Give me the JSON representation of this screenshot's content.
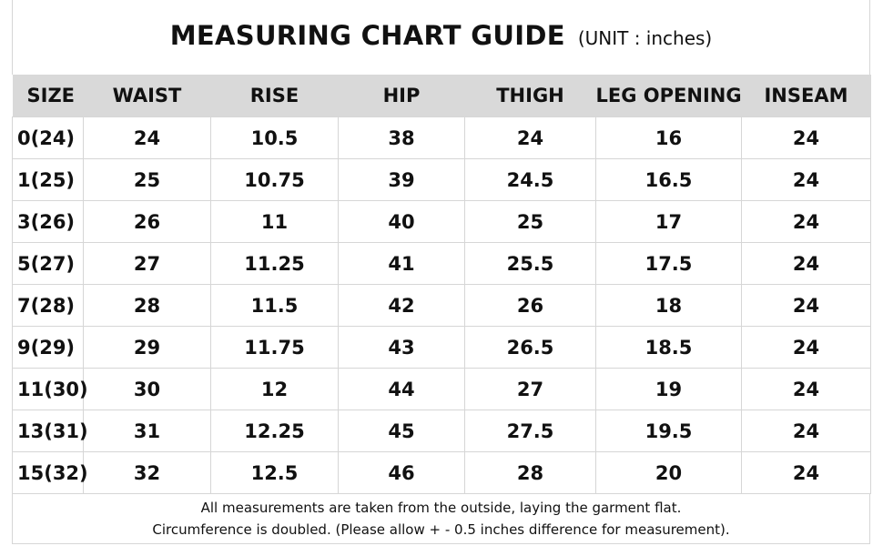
{
  "title": {
    "main": "MEASURING CHART GUIDE",
    "unit": "(UNIT : inches)"
  },
  "table": {
    "headers": [
      "SIZE",
      "WAIST",
      "RISE",
      "HIP",
      "THIGH",
      "LEG OPENING",
      "INSEAM"
    ],
    "rows": [
      [
        "0(24)",
        "24",
        "10.5",
        "38",
        "24",
        "16",
        "24"
      ],
      [
        "1(25)",
        "25",
        "10.75",
        "39",
        "24.5",
        "16.5",
        "24"
      ],
      [
        "3(26)",
        "26",
        "11",
        "40",
        "25",
        "17",
        "24"
      ],
      [
        "5(27)",
        "27",
        "11.25",
        "41",
        "25.5",
        "17.5",
        "24"
      ],
      [
        "7(28)",
        "28",
        "11.5",
        "42",
        "26",
        "18",
        "24"
      ],
      [
        "9(29)",
        "29",
        "11.75",
        "43",
        "26.5",
        "18.5",
        "24"
      ],
      [
        "11(30)",
        "30",
        "12",
        "44",
        "27",
        "19",
        "24"
      ],
      [
        "13(31)",
        "31",
        "12.25",
        "45",
        "27.5",
        "19.5",
        "24"
      ],
      [
        "15(32)",
        "32",
        "12.5",
        "46",
        "28",
        "20",
        "24"
      ]
    ]
  },
  "footnote": {
    "line1": "All measurements are taken from the outside, laying the garment flat.",
    "line2": "Circumference is doubled. (Please allow + - 0.5 inches difference for measurement)."
  },
  "colors": {
    "header_bg": "#d9d9d9",
    "grid_line": "#d6d6d6",
    "text": "#111111"
  }
}
